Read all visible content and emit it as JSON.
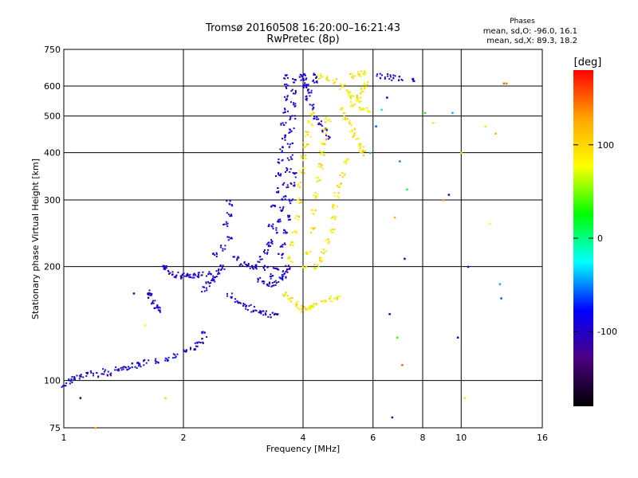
{
  "header": {
    "title_line1": "Tromsø 20160508 16:20:00–16:21:43",
    "title_line2": "RwPretec (8p)",
    "phases_heading": "Phases",
    "phase_o": "mean, sd,O: -96.0, 16.1",
    "phase_x": "mean, sd,X:  89.3, 18.2"
  },
  "colorbar": {
    "unit_label": "[deg]",
    "range": [
      -180,
      180
    ],
    "ticks": [
      "100",
      "0",
      "-100"
    ],
    "tick_values": [
      100,
      0,
      -100
    ],
    "colors": [
      "#ff0000",
      "#ffa500",
      "#ffff00",
      "#00ff00",
      "#00ffff",
      "#0000ff",
      "#4b0082",
      "#000000"
    ]
  },
  "chart_data": {
    "type": "scatter",
    "title": "Tromsø 20160508 16:20:00–16:21:43",
    "subtitle": "RwPretec (8p)",
    "xlabel": "Frequency [MHz]",
    "ylabel": "Stationary phase Virtual Height [km]",
    "xscale": "log",
    "yscale": "log",
    "xlim": [
      1,
      16
    ],
    "ylim": [
      75,
      750
    ],
    "xticks": [
      1,
      2,
      4,
      6,
      8,
      10,
      16
    ],
    "xtick_labels": [
      "1",
      "2",
      "4",
      "6",
      "8",
      "10",
      "16"
    ],
    "yticks": [
      75,
      100,
      200,
      300,
      400,
      500,
      600,
      750
    ],
    "ytick_labels": [
      "75",
      "100",
      "200",
      "300",
      "400",
      "500",
      "600",
      "750"
    ],
    "grid": true,
    "color_dimension": "phase [deg]",
    "series": [
      {
        "mode": "O",
        "phase_deg": -96,
        "points": [
          [
            1.0,
            98
          ],
          [
            1.03,
            100
          ],
          [
            1.06,
            102
          ],
          [
            1.1,
            103
          ],
          [
            1.15,
            105
          ],
          [
            1.2,
            104
          ],
          [
            1.25,
            106
          ],
          [
            1.3,
            105
          ],
          [
            1.35,
            108
          ],
          [
            1.4,
            109
          ],
          [
            1.45,
            108
          ],
          [
            1.5,
            110
          ],
          [
            1.55,
            111
          ],
          [
            1.6,
            112
          ],
          [
            1.7,
            113
          ],
          [
            1.8,
            115
          ],
          [
            1.9,
            117
          ],
          [
            2.0,
            119
          ],
          [
            2.1,
            122
          ],
          [
            2.15,
            125
          ],
          [
            2.2,
            128
          ],
          [
            2.25,
            133
          ],
          [
            1.62,
            172
          ],
          [
            1.65,
            168
          ],
          [
            1.68,
            163
          ],
          [
            1.7,
            158
          ],
          [
            1.72,
            154
          ],
          [
            1.78,
            202
          ],
          [
            1.8,
            197
          ],
          [
            1.85,
            193
          ],
          [
            1.9,
            191
          ],
          [
            1.95,
            190
          ],
          [
            2.0,
            190
          ],
          [
            2.05,
            191
          ],
          [
            2.1,
            190
          ],
          [
            2.15,
            191
          ],
          [
            2.2,
            192
          ],
          [
            2.3,
            192
          ],
          [
            2.25,
            175
          ],
          [
            2.3,
            180
          ],
          [
            2.35,
            185
          ],
          [
            2.4,
            190
          ],
          [
            2.45,
            195
          ],
          [
            2.5,
            200
          ],
          [
            2.4,
            215
          ],
          [
            2.5,
            225
          ],
          [
            2.6,
            240
          ],
          [
            2.55,
            260
          ],
          [
            2.6,
            275
          ],
          [
            2.6,
            295
          ],
          [
            2.7,
            210
          ],
          [
            2.8,
            205
          ],
          [
            2.9,
            202
          ],
          [
            3.0,
            200
          ],
          [
            2.6,
            168
          ],
          [
            2.7,
            163
          ],
          [
            2.8,
            160
          ],
          [
            2.9,
            157
          ],
          [
            3.0,
            155
          ],
          [
            3.1,
            153
          ],
          [
            3.2,
            151
          ],
          [
            3.3,
            150
          ],
          [
            3.4,
            150
          ],
          [
            3.0,
            200
          ],
          [
            3.1,
            210
          ],
          [
            3.2,
            220
          ],
          [
            3.3,
            235
          ],
          [
            3.4,
            250
          ],
          [
            3.45,
            265
          ],
          [
            3.5,
            285
          ],
          [
            3.55,
            305
          ],
          [
            3.6,
            330
          ],
          [
            3.65,
            360
          ],
          [
            3.7,
            390
          ],
          [
            3.7,
            420
          ],
          [
            3.72,
            460
          ],
          [
            3.75,
            500
          ],
          [
            3.75,
            540
          ],
          [
            3.78,
            580
          ],
          [
            3.8,
            620
          ],
          [
            3.1,
            185
          ],
          [
            3.2,
            182
          ],
          [
            3.3,
            180
          ],
          [
            3.4,
            182
          ],
          [
            3.5,
            185
          ],
          [
            3.55,
            190
          ],
          [
            3.6,
            195
          ],
          [
            3.65,
            200
          ],
          [
            3.2,
            200
          ],
          [
            3.25,
            230
          ],
          [
            3.3,
            260
          ],
          [
            3.35,
            290
          ],
          [
            3.4,
            320
          ],
          [
            3.45,
            350
          ],
          [
            3.5,
            380
          ],
          [
            3.5,
            410
          ],
          [
            3.55,
            440
          ],
          [
            3.55,
            480
          ],
          [
            3.6,
            520
          ],
          [
            3.6,
            560
          ],
          [
            3.62,
            600
          ],
          [
            3.62,
            640
          ],
          [
            3.3,
            190
          ],
          [
            3.4,
            200
          ],
          [
            3.5,
            215
          ],
          [
            3.55,
            230
          ],
          [
            3.6,
            250
          ],
          [
            3.65,
            270
          ],
          [
            3.7,
            300
          ],
          [
            3.75,
            330
          ],
          [
            3.8,
            350
          ],
          [
            4.0,
            640
          ],
          [
            4.05,
            600
          ],
          [
            4.1,
            560
          ],
          [
            4.2,
            530
          ],
          [
            4.3,
            500
          ],
          [
            4.4,
            480
          ],
          [
            4.5,
            460
          ],
          [
            4.6,
            440
          ],
          [
            3.95,
            640
          ],
          [
            4.0,
            620
          ],
          [
            4.05,
            600
          ],
          [
            4.15,
            580
          ],
          [
            4.25,
            620
          ],
          [
            4.3,
            640
          ],
          [
            6.5,
            638
          ],
          [
            6.7,
            635
          ],
          [
            7.0,
            632
          ],
          [
            7.5,
            630
          ],
          [
            6.2,
            640
          ]
        ]
      },
      {
        "mode": "X",
        "phase_deg": 89,
        "points": [
          [
            3.6,
            170
          ],
          [
            3.7,
            165
          ],
          [
            3.8,
            160
          ],
          [
            3.9,
            157
          ],
          [
            4.0,
            155
          ],
          [
            4.1,
            156
          ],
          [
            4.2,
            157
          ],
          [
            4.3,
            160
          ],
          [
            4.5,
            163
          ],
          [
            4.7,
            165
          ],
          [
            4.9,
            166
          ],
          [
            3.7,
            210
          ],
          [
            3.75,
            230
          ],
          [
            3.8,
            250
          ],
          [
            3.85,
            270
          ],
          [
            3.9,
            300
          ],
          [
            3.9,
            330
          ],
          [
            3.95,
            360
          ],
          [
            4.0,
            390
          ],
          [
            4.05,
            420
          ],
          [
            4.1,
            450
          ],
          [
            4.15,
            480
          ],
          [
            4.2,
            510
          ],
          [
            4.0,
            200
          ],
          [
            4.1,
            220
          ],
          [
            4.2,
            250
          ],
          [
            4.25,
            280
          ],
          [
            4.3,
            310
          ],
          [
            4.35,
            340
          ],
          [
            4.4,
            370
          ],
          [
            4.45,
            400
          ],
          [
            4.5,
            430
          ],
          [
            4.55,
            460
          ],
          [
            4.6,
            490
          ],
          [
            4.3,
            200
          ],
          [
            4.4,
            210
          ],
          [
            4.5,
            220
          ],
          [
            4.6,
            235
          ],
          [
            4.7,
            250
          ],
          [
            4.75,
            270
          ],
          [
            4.8,
            290
          ],
          [
            4.85,
            310
          ],
          [
            4.9,
            330
          ],
          [
            5.0,
            350
          ],
          [
            5.1,
            380
          ],
          [
            4.4,
            640
          ],
          [
            4.6,
            630
          ],
          [
            4.8,
            620
          ],
          [
            5.0,
            600
          ],
          [
            5.2,
            580
          ],
          [
            5.4,
            560
          ],
          [
            5.5,
            570
          ],
          [
            5.6,
            590
          ],
          [
            5.7,
            610
          ],
          [
            5.5,
            550
          ],
          [
            5.3,
            540
          ],
          [
            5.2,
            560
          ],
          [
            5.6,
            530
          ],
          [
            5.8,
            520
          ],
          [
            5.0,
            520
          ],
          [
            5.1,
            500
          ],
          [
            5.2,
            480
          ],
          [
            5.3,
            460
          ],
          [
            5.4,
            440
          ],
          [
            5.5,
            420
          ],
          [
            5.6,
            410
          ],
          [
            5.7,
            400
          ],
          [
            5.3,
            640
          ],
          [
            5.5,
            650
          ],
          [
            5.7,
            655
          ]
        ]
      }
    ],
    "sparse_points": [
      [
        1.1,
        90,
        -150
      ],
      [
        1.2,
        75,
        120
      ],
      [
        1.8,
        90,
        100
      ],
      [
        1.6,
        140,
        80
      ],
      [
        1.5,
        170,
        -120
      ],
      [
        5.9,
        400,
        -40
      ],
      [
        6.1,
        470,
        -60
      ],
      [
        6.3,
        520,
        -30
      ],
      [
        6.5,
        560,
        -80
      ],
      [
        7.0,
        380,
        -50
      ],
      [
        7.3,
        320,
        10
      ],
      [
        6.8,
        270,
        120
      ],
      [
        7.2,
        210,
        -90
      ],
      [
        6.6,
        150,
        -100
      ],
      [
        6.9,
        130,
        40
      ],
      [
        7.1,
        110,
        150
      ],
      [
        6.7,
        80,
        -120
      ],
      [
        8.1,
        510,
        20
      ],
      [
        8.5,
        480,
        90
      ],
      [
        9.0,
        300,
        130
      ],
      [
        9.3,
        310,
        -110
      ],
      [
        10.0,
        400,
        100
      ],
      [
        10.2,
        90,
        90
      ],
      [
        10.4,
        200,
        -100
      ],
      [
        9.8,
        130,
        -90
      ],
      [
        9.5,
        510,
        -40
      ],
      [
        11.5,
        470,
        90
      ],
      [
        12.2,
        450,
        120
      ],
      [
        12.8,
        610,
        150
      ],
      [
        13.0,
        610,
        140
      ],
      [
        11.8,
        260,
        80
      ],
      [
        12.5,
        180,
        -40
      ],
      [
        12.6,
        165,
        -60
      ]
    ]
  }
}
